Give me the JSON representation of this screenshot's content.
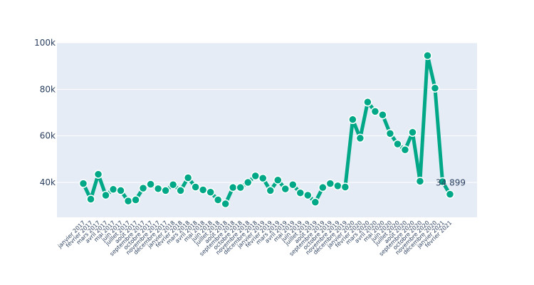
{
  "chart_data": {
    "type": "line",
    "x": [
      "janvier 2017",
      "février 2017",
      "mars 2017",
      "avril 2017",
      "mai 2017",
      "juin 2017",
      "juillet 2017",
      "août 2017",
      "septembre 2017",
      "octobre 2017",
      "novembre 2017",
      "décembre 2017",
      "janvier 2018",
      "février 2018",
      "mars 2018",
      "avril 2018",
      "mai 2018",
      "juin 2018",
      "juillet 2018",
      "août 2018",
      "septembre 2018",
      "octobre 2018",
      "novembre 2018",
      "décembre 2018",
      "janvier 2019",
      "février 2019",
      "mars 2019",
      "avril 2019",
      "mai 2019",
      "juin 2019",
      "juillet 2019",
      "août 2019",
      "septembre 2019",
      "octobre 2019",
      "novembre 2019",
      "décembre 2019",
      "janvier 2020",
      "février 2020",
      "mars 2020",
      "avril 2020",
      "mai 2020",
      "juin 2020",
      "juillet 2020",
      "août 2020",
      "septembre 2020",
      "octobre 2020",
      "novembre 2020",
      "décembre 2020",
      "janvier 2021",
      "février 2021"
    ],
    "series": [
      {
        "values": [
          39500,
          32800,
          43500,
          34500,
          37000,
          36500,
          32000,
          32500,
          37500,
          39200,
          37300,
          36500,
          39000,
          36500,
          42000,
          38000,
          36800,
          35800,
          32500,
          30800,
          37800,
          37800,
          40000,
          42800,
          41800,
          36500,
          41000,
          37200,
          39000,
          35500,
          34500,
          31500,
          37800,
          39500,
          38500,
          38000,
          67000,
          59000,
          74500,
          70500,
          69000,
          61000,
          56500,
          54000,
          61500,
          40500,
          94500,
          80500,
          40300,
          34899
        ]
      }
    ],
    "data_labels": [
      {
        "index": 49,
        "text": "34 899"
      }
    ],
    "ylim": [
      25000,
      100000
    ],
    "yticks": [
      {
        "value": 40000,
        "label": "40k"
      },
      {
        "value": 60000,
        "label": "60k"
      },
      {
        "value": 80000,
        "label": "80k"
      },
      {
        "value": 100000,
        "label": "100k"
      }
    ],
    "grid": true,
    "line_color": "#00a887",
    "marker_fill": "#00a887",
    "marker_stroke": "#ffffff",
    "plot_bg": "#e5ecf6"
  }
}
